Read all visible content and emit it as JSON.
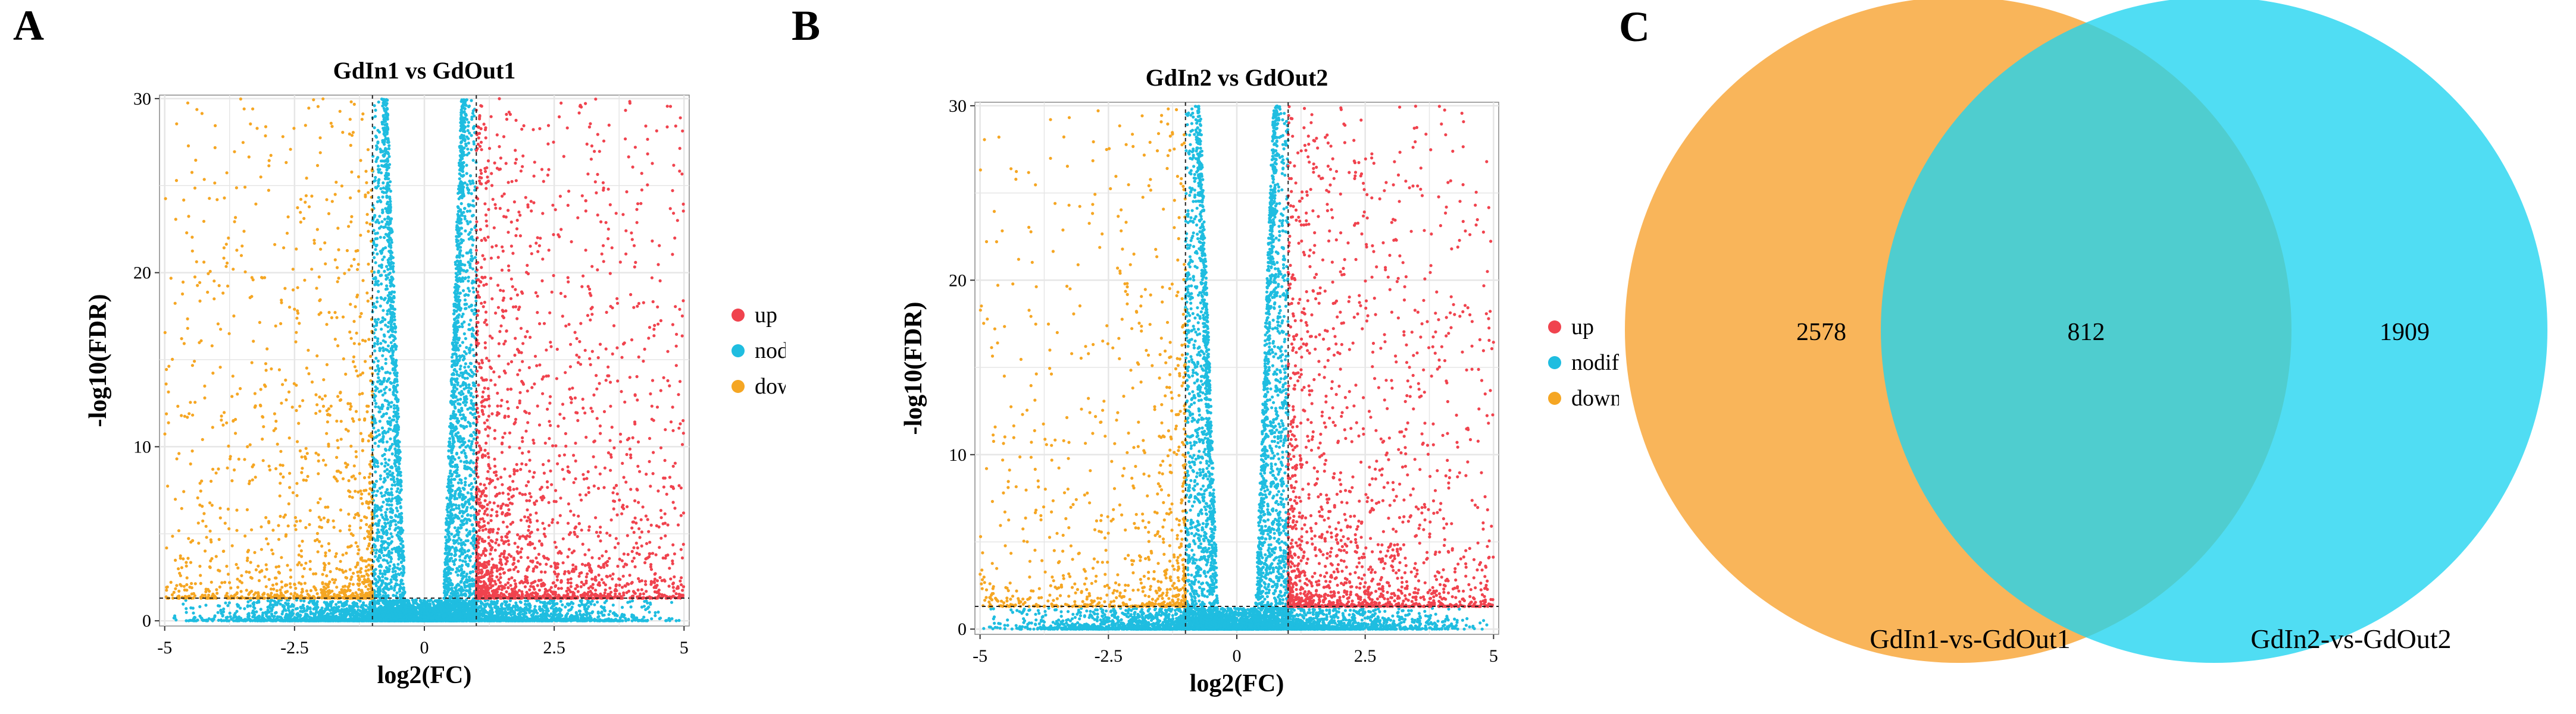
{
  "colors": {
    "up": "#f0434e",
    "nodiff": "#1fbde0",
    "down": "#f5a623",
    "grid_bg": "#ffffff",
    "grid_line": "#e6e6e6",
    "venn_left": "#f9b55a",
    "venn_right": "#1fd3f0",
    "venn_overlap": "#5fcfcc"
  },
  "panels": [
    {
      "letter": "A",
      "chart_data": {
        "type": "scatter",
        "title": "GdIn1 vs GdOut1",
        "xlabel": "log2(FC)",
        "ylabel": "-log10(FDR)",
        "xlim": [
          -5.1,
          5.1
        ],
        "ylim": [
          -0.3,
          30.2
        ],
        "x_ticks": [
          -5,
          -2.5,
          0,
          2.5,
          5
        ],
        "x_tick_labels": [
          "-5",
          "-2.5",
          "0",
          "2.5",
          "5"
        ],
        "y_ticks": [
          0,
          10,
          20,
          30
        ],
        "y_tick_labels": [
          "0",
          "10",
          "20",
          "30"
        ],
        "fc_threshold": 1,
        "fdr_threshold": 1.3,
        "legend": [
          {
            "key": "up",
            "label": "up"
          },
          {
            "key": "nodiff",
            "label": "nodiff"
          },
          {
            "key": "down",
            "label": "down"
          }
        ],
        "series_density": {
          "up": 2100,
          "nodiff": 7000,
          "down": 1300
        },
        "seed": 11
      }
    },
    {
      "letter": "B",
      "chart_data": {
        "type": "scatter",
        "title": "GdIn2 vs GdOut2",
        "xlabel": "log2(FC)",
        "ylabel": "-log10(FDR)",
        "xlim": [
          -5.1,
          5.1
        ],
        "ylim": [
          -0.3,
          30.2
        ],
        "x_ticks": [
          -5,
          -2.5,
          0,
          2.5,
          5
        ],
        "x_tick_labels": [
          "-5",
          "-2.5",
          "0",
          "2.5",
          "5"
        ],
        "y_ticks": [
          0,
          10,
          20,
          30
        ],
        "y_tick_labels": [
          "0",
          "10",
          "20",
          "30"
        ],
        "fc_threshold": 1,
        "fdr_threshold": 1.3,
        "legend": [
          {
            "key": "up",
            "label": "up"
          },
          {
            "key": "nodiff",
            "label": "nodiff"
          },
          {
            "key": "down",
            "label": "down"
          }
        ],
        "series_density": {
          "up": 1800,
          "nodiff": 6500,
          "down": 900
        },
        "seed": 29
      }
    },
    {
      "letter": "C",
      "chart_data": {
        "type": "venn",
        "sets": [
          {
            "name": "GdIn1-vs-GdOut1",
            "only": 2578
          },
          {
            "name": "GdIn2-vs-GdOut2",
            "only": 1909
          }
        ],
        "overlap": 812
      }
    }
  ]
}
